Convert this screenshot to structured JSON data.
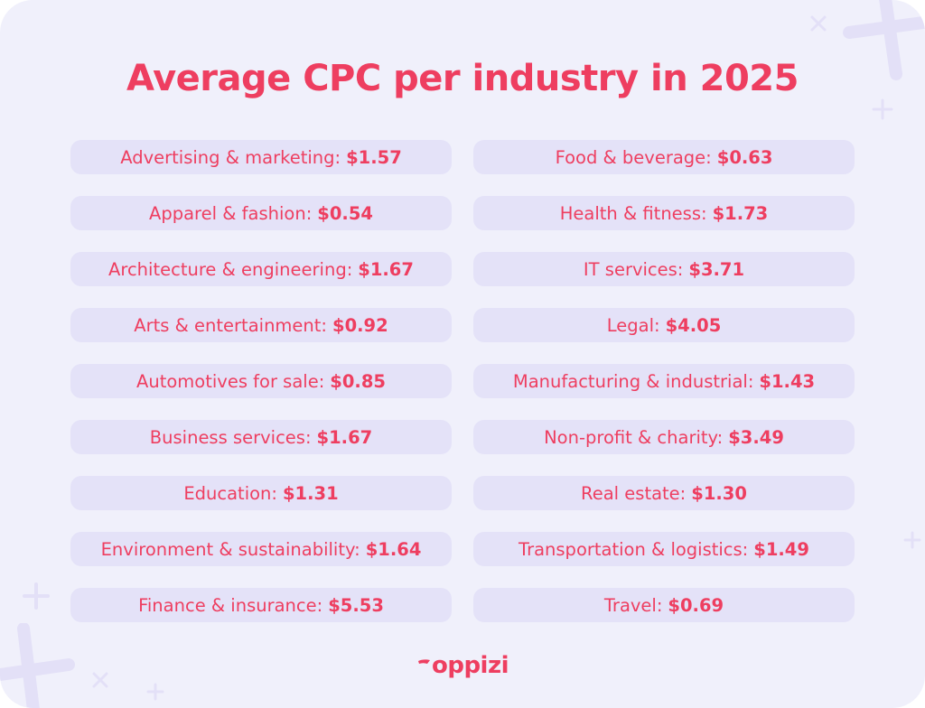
{
  "title": "Average CPC per industry in 2025",
  "colors": {
    "accent": "#ee3e60",
    "background": "#f0f0fb",
    "pill": "#e4e2f8"
  },
  "left_items": [
    {
      "label": "Advertising & marketing:",
      "value": "$1.57"
    },
    {
      "label": "Apparel & fashion:",
      "value": "$0.54"
    },
    {
      "label": "Architecture & engineering:",
      "value": "$1.67"
    },
    {
      "label": "Arts & entertainment:",
      "value": "$0.92"
    },
    {
      "label": "Automotives for sale:",
      "value": "$0.85"
    },
    {
      "label": "Business services:",
      "value": "$1.67"
    },
    {
      "label": "Education:",
      "value": "$1.31"
    },
    {
      "label": "Environment & sustainability:",
      "value": "$1.64"
    },
    {
      "label": "Finance & insurance:",
      "value": "$5.53"
    }
  ],
  "right_items": [
    {
      "label": "Food & beverage:",
      "value": "$0.63"
    },
    {
      "label": "Health & fitness:",
      "value": "$1.73"
    },
    {
      "label": "IT services:",
      "value": "$3.71"
    },
    {
      "label": "Legal:",
      "value": "$4.05"
    },
    {
      "label": "Manufacturing & industrial:",
      "value": "$1.43"
    },
    {
      "label": "Non-profit & charity:",
      "value": "$3.49"
    },
    {
      "label": "Real estate:",
      "value": "$1.30"
    },
    {
      "label": "Transportation & logistics:",
      "value": "$1.49"
    },
    {
      "label": "Travel:",
      "value": "$0.69"
    }
  ],
  "logo": {
    "text": "oppizi"
  }
}
